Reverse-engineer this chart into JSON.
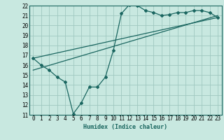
{
  "xlabel": "Humidex (Indice chaleur)",
  "xlim": [
    -0.5,
    23.5
  ],
  "ylim": [
    11,
    22
  ],
  "xticks": [
    0,
    1,
    2,
    3,
    4,
    5,
    6,
    7,
    8,
    9,
    10,
    11,
    12,
    13,
    14,
    15,
    16,
    17,
    18,
    19,
    20,
    21,
    22,
    23
  ],
  "yticks": [
    11,
    12,
    13,
    14,
    15,
    16,
    17,
    18,
    19,
    20,
    21,
    22
  ],
  "bg_color": "#c8e8e0",
  "grid_color": "#a0c8c0",
  "line_color": "#1a6660",
  "line1_x": [
    0,
    1,
    2,
    3,
    4,
    5,
    6,
    7,
    8,
    9,
    10,
    11,
    12,
    13,
    14,
    15,
    16,
    17,
    18,
    19,
    20,
    21,
    22,
    23
  ],
  "line1_y": [
    16.7,
    16.0,
    15.5,
    14.8,
    14.3,
    11.1,
    12.2,
    13.8,
    13.8,
    14.8,
    17.5,
    21.2,
    22.1,
    22.0,
    21.5,
    21.3,
    21.0,
    21.1,
    21.3,
    21.3,
    21.5,
    21.5,
    21.3,
    20.8
  ],
  "line2_x": [
    0,
    23
  ],
  "line2_y": [
    15.5,
    21.0
  ],
  "line3_x": [
    0,
    23
  ],
  "line3_y": [
    16.7,
    20.8
  ]
}
